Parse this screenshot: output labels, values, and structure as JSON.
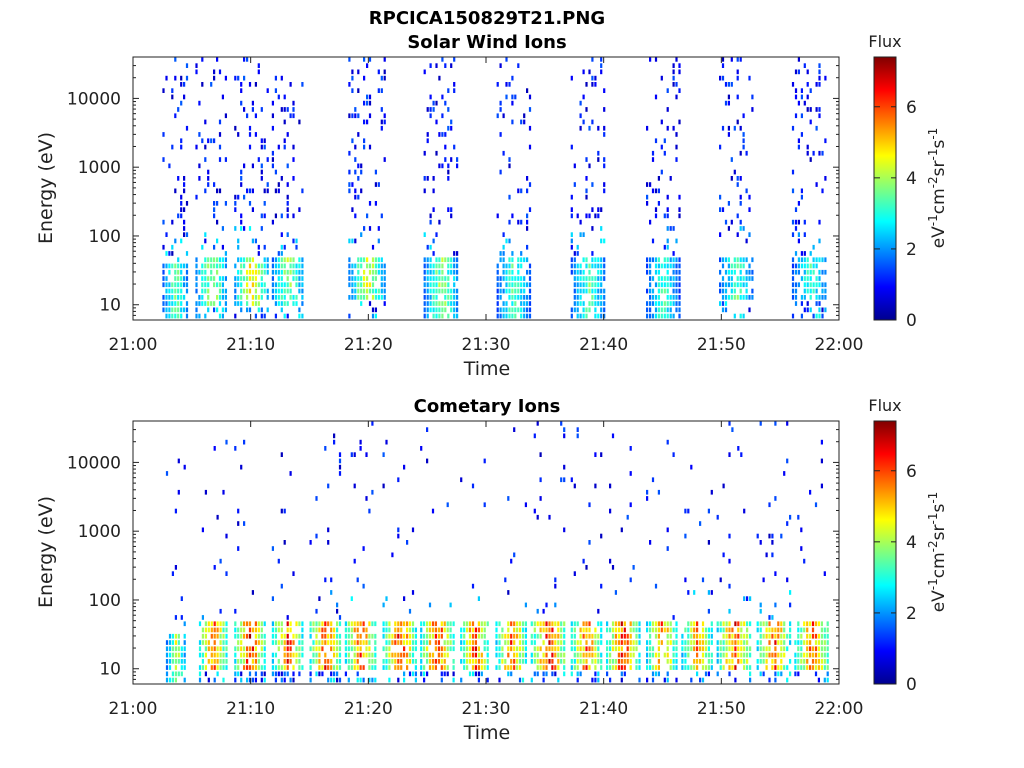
{
  "figure_title": "RPCICA150829T21.PNG",
  "chart_data": [
    {
      "type": "heatmap",
      "title": "Solar Wind Ions",
      "xlabel": "Time",
      "ylabel": "Energy (eV)",
      "x_ticks": [
        "21:00",
        "21:10",
        "21:20",
        "21:30",
        "21:40",
        "21:50",
        "22:00"
      ],
      "xlim": [
        "21:00",
        "22:00"
      ],
      "y_scale": "log",
      "ylim": [
        6,
        40000
      ],
      "y_ticks": [
        10,
        100,
        1000,
        10000
      ],
      "y_tick_labels": [
        "10",
        "100",
        "1000",
        "10000"
      ],
      "colorbar": {
        "label": "Flux",
        "unit_base": "eV",
        "unit_parts": [
          "-1",
          "cm",
          "-2",
          "sr",
          "-1",
          "s",
          "-1"
        ],
        "range": [
          0,
          7.4
        ],
        "ticks": [
          "0",
          "2",
          "4",
          "6"
        ],
        "colormap": "jet"
      },
      "bursts": [
        {
          "start": "21:02.5",
          "end": "21:04.6",
          "peak_flux": 4.2,
          "low_energy_band": [
            6,
            40
          ]
        },
        {
          "start": "21:05.3",
          "end": "21:08.0",
          "peak_flux": 4.8,
          "low_energy_band": [
            10,
            45
          ]
        },
        {
          "start": "21:08.6",
          "end": "21:11.5",
          "peak_flux": 5.6,
          "low_energy_band": [
            10,
            45
          ]
        },
        {
          "start": "21:11.8",
          "end": "21:14.5",
          "peak_flux": 4.6,
          "low_energy_band": [
            10,
            45
          ]
        },
        {
          "start": "21:18.3",
          "end": "21:21.4",
          "peak_flux": 5.2,
          "low_energy_band": [
            12,
            45
          ]
        },
        {
          "start": "21:24.7",
          "end": "21:27.6",
          "peak_flux": 4.6,
          "low_energy_band": [
            6,
            45
          ]
        },
        {
          "start": "21:30.9",
          "end": "21:33.7",
          "peak_flux": 4.0,
          "low_energy_band": [
            6,
            45
          ]
        },
        {
          "start": "21:37.2",
          "end": "21:40.2",
          "peak_flux": 4.0,
          "low_energy_band": [
            6,
            45
          ]
        },
        {
          "start": "21:43.6",
          "end": "21:46.4",
          "peak_flux": 3.8,
          "low_energy_band": [
            6,
            45
          ]
        },
        {
          "start": "21:49.8",
          "end": "21:52.7",
          "peak_flux": 4.0,
          "low_energy_band": [
            12,
            45
          ]
        },
        {
          "start": "21:56.0",
          "end": "21:59.0",
          "peak_flux": 3.8,
          "low_energy_band": [
            12,
            45
          ]
        }
      ]
    },
    {
      "type": "heatmap",
      "title": "Cometary Ions",
      "xlabel": "Time",
      "ylabel": "Energy (eV)",
      "x_ticks": [
        "21:00",
        "21:10",
        "21:20",
        "21:30",
        "21:40",
        "21:50",
        "22:00"
      ],
      "xlim": [
        "21:00",
        "22:00"
      ],
      "y_scale": "log",
      "ylim": [
        6,
        40000
      ],
      "y_ticks": [
        10,
        100,
        1000,
        10000
      ],
      "y_tick_labels": [
        "10",
        "100",
        "1000",
        "10000"
      ],
      "colorbar": {
        "label": "Flux",
        "unit_base": "eV",
        "unit_parts": [
          "-1",
          "cm",
          "-2",
          "sr",
          "-1",
          "s",
          "-1"
        ],
        "range": [
          0,
          7.4
        ],
        "ticks": [
          "0",
          "2",
          "4",
          "6"
        ],
        "colormap": "jet"
      },
      "bursts": [
        {
          "start": "21:02.8",
          "end": "21:04.4",
          "peak_flux": 5.0,
          "low_energy_band": [
            6,
            30
          ]
        },
        {
          "start": "21:05.6",
          "end": "21:08.0",
          "peak_flux": 7.0,
          "low_energy_band": [
            10,
            45
          ]
        },
        {
          "start": "21:08.6",
          "end": "21:11.2",
          "peak_flux": 7.4,
          "low_energy_band": [
            10,
            45
          ]
        },
        {
          "start": "21:11.8",
          "end": "21:14.4",
          "peak_flux": 7.0,
          "low_energy_band": [
            10,
            45
          ]
        },
        {
          "start": "21:15.0",
          "end": "21:17.6",
          "peak_flux": 7.2,
          "low_energy_band": [
            10,
            45
          ]
        },
        {
          "start": "21:18.0",
          "end": "21:20.6",
          "peak_flux": 7.2,
          "low_energy_band": [
            10,
            45
          ]
        },
        {
          "start": "21:21.2",
          "end": "21:24.0",
          "peak_flux": 7.4,
          "low_energy_band": [
            10,
            45
          ]
        },
        {
          "start": "21:24.4",
          "end": "21:27.2",
          "peak_flux": 7.2,
          "low_energy_band": [
            10,
            45
          ]
        },
        {
          "start": "21:27.8",
          "end": "21:30.2",
          "peak_flux": 7.0,
          "low_energy_band": [
            10,
            45
          ]
        },
        {
          "start": "21:30.8",
          "end": "21:33.4",
          "peak_flux": 6.8,
          "low_energy_band": [
            10,
            45
          ]
        },
        {
          "start": "21:33.8",
          "end": "21:36.8",
          "peak_flux": 7.4,
          "low_energy_band": [
            10,
            45
          ]
        },
        {
          "start": "21:37.2",
          "end": "21:39.8",
          "peak_flux": 6.8,
          "low_energy_band": [
            10,
            45
          ]
        },
        {
          "start": "21:40.2",
          "end": "21:43.0",
          "peak_flux": 7.4,
          "low_energy_band": [
            10,
            45
          ]
        },
        {
          "start": "21:43.6",
          "end": "21:46.2",
          "peak_flux": 6.6,
          "low_energy_band": [
            10,
            45
          ]
        },
        {
          "start": "21:46.6",
          "end": "21:49.2",
          "peak_flux": 6.4,
          "low_energy_band": [
            10,
            45
          ]
        },
        {
          "start": "21:49.6",
          "end": "21:52.6",
          "peak_flux": 7.0,
          "low_energy_band": [
            10,
            45
          ]
        },
        {
          "start": "21:53.0",
          "end": "21:55.8",
          "peak_flux": 7.0,
          "low_energy_band": [
            10,
            45
          ]
        },
        {
          "start": "21:56.2",
          "end": "21:59.2",
          "peak_flux": 6.8,
          "low_energy_band": [
            10,
            45
          ]
        }
      ]
    }
  ]
}
